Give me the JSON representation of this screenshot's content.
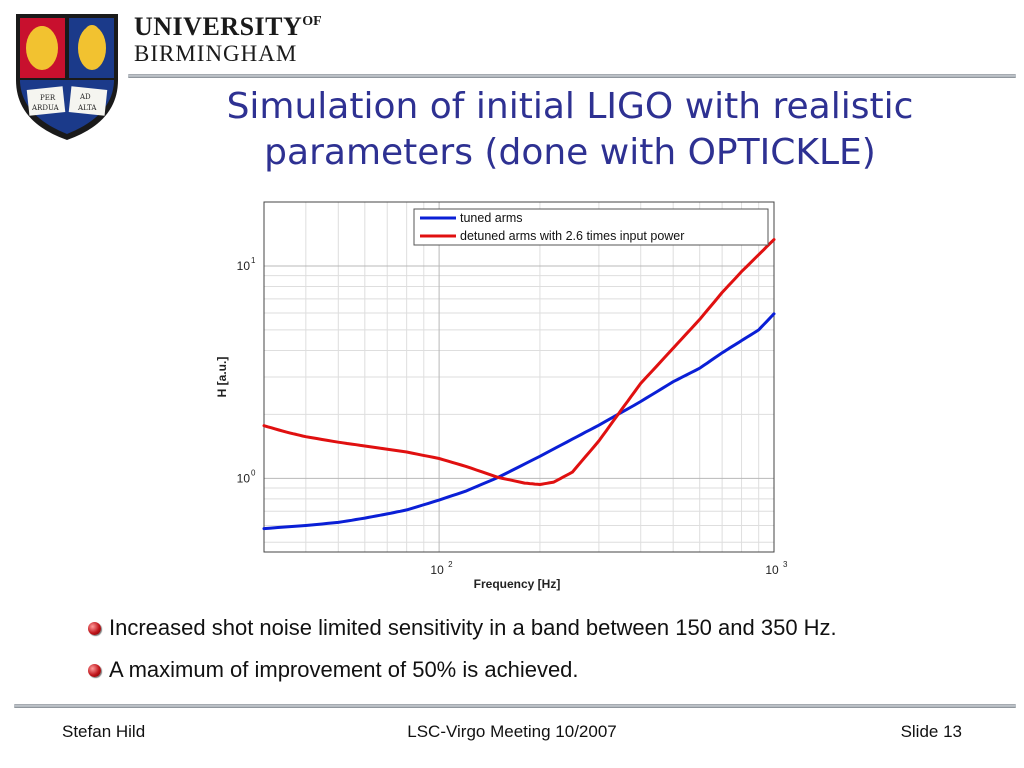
{
  "header": {
    "university_line1": "UNIVERSITY",
    "university_of": "OF",
    "university_line2": "BIRMINGHAM",
    "logo_motto": [
      "PER",
      "AD",
      "ARDUA",
      "ALTA"
    ]
  },
  "slide": {
    "title": "Simulation of initial LIGO with realistic parameters (done with OPTICKLE)",
    "bullets": [
      "Increased shot noise limited sensitivity in a band between 150 and 350 Hz.",
      "A maximum of improvement of 50% is achieved."
    ]
  },
  "footer": {
    "author": "Stefan Hild",
    "meeting": "LSC-Virgo Meeting 10/2007",
    "slide_number": "Slide 13"
  },
  "colors": {
    "title": "#2e3192",
    "tuned": "#0a1fd6",
    "detuned": "#e01010",
    "bullet": "#c0151b"
  },
  "chart_data": {
    "type": "line",
    "xscale": "log",
    "yscale": "log",
    "xlabel": "Frequency [Hz]",
    "ylabel": "H [a.u.]",
    "xlim": [
      30,
      1000
    ],
    "ylim": [
      0.45,
      20
    ],
    "xticks": [
      {
        "value": 100,
        "base": "10",
        "exp": "2"
      },
      {
        "value": 1000,
        "base": "10",
        "exp": "3"
      }
    ],
    "yticks": [
      {
        "value": 1,
        "base": "10",
        "exp": "0"
      },
      {
        "value": 10,
        "base": "10",
        "exp": "1"
      }
    ],
    "grid": true,
    "legend_position": "top-right",
    "series": [
      {
        "name": "tuned arms",
        "color": "#0a1fd6",
        "x": [
          30,
          40,
          50,
          60,
          70,
          80,
          100,
          120,
          150,
          200,
          250,
          300,
          400,
          500,
          600,
          700,
          800,
          900,
          1000
        ],
        "y": [
          0.58,
          0.6,
          0.62,
          0.65,
          0.68,
          0.71,
          0.79,
          0.87,
          1.01,
          1.27,
          1.53,
          1.78,
          2.3,
          2.85,
          3.3,
          3.9,
          4.45,
          5.0,
          5.95
        ]
      },
      {
        "name": "detuned arms with 2.6 times input power",
        "color": "#e01010",
        "x": [
          30,
          35,
          40,
          50,
          60,
          80,
          100,
          120,
          150,
          180,
          200,
          220,
          250,
          300,
          350,
          400,
          500,
          600,
          700,
          800,
          900,
          1000
        ],
        "y": [
          1.77,
          1.65,
          1.57,
          1.48,
          1.42,
          1.33,
          1.24,
          1.14,
          1.01,
          0.95,
          0.935,
          0.96,
          1.07,
          1.5,
          2.1,
          2.8,
          4.1,
          5.6,
          7.5,
          9.4,
          11.3,
          13.3
        ]
      }
    ]
  }
}
